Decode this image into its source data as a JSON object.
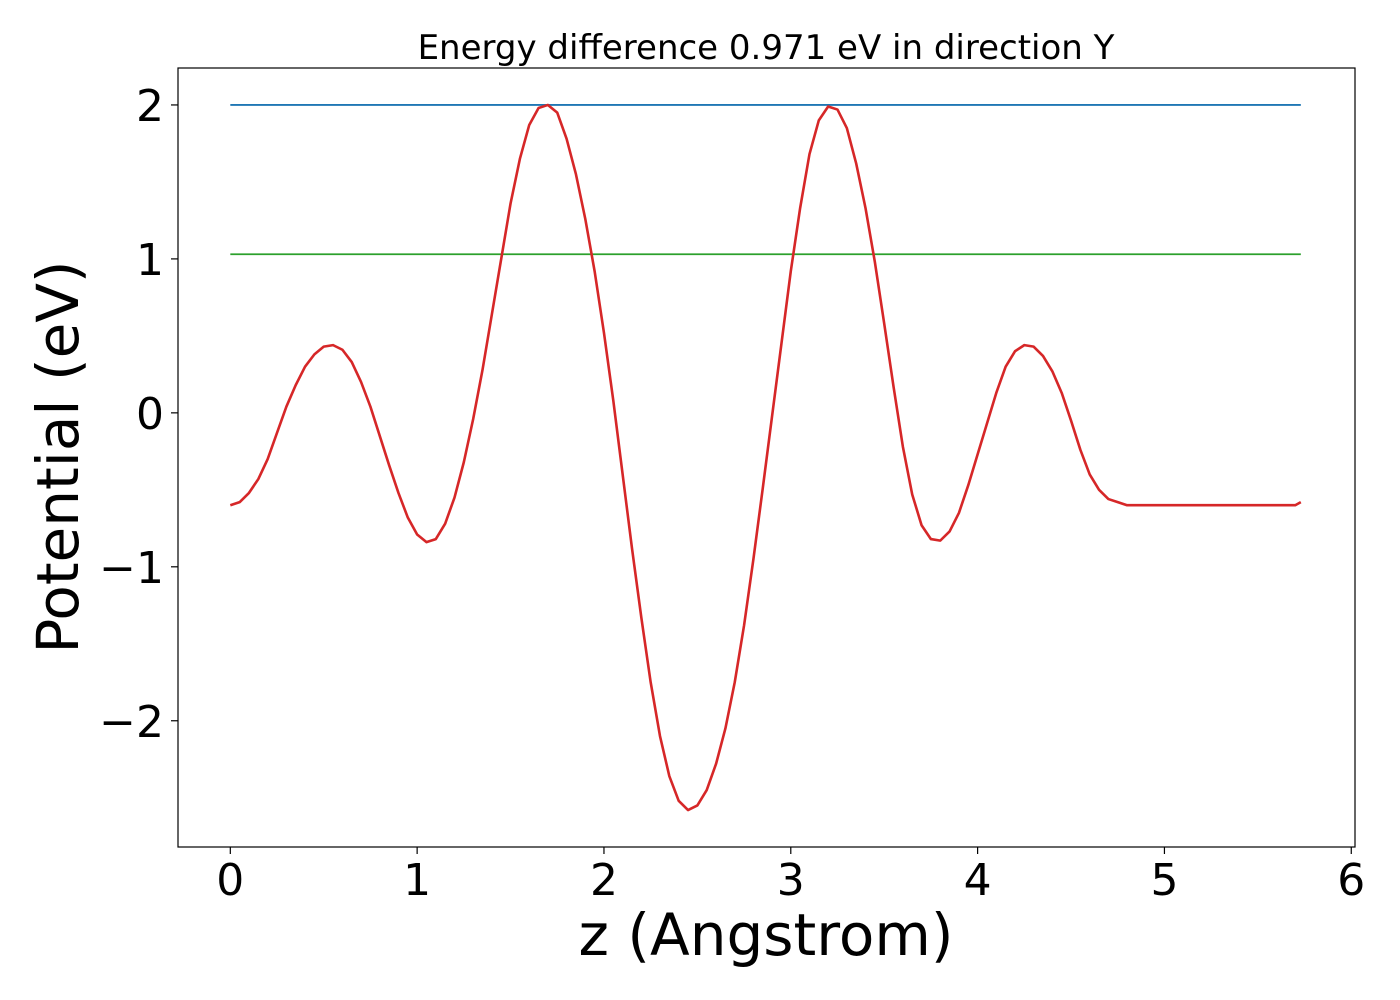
{
  "chart_data": {
    "type": "line",
    "title": "Energy difference 0.971 eV in direction Y",
    "xlabel": "z (Angstrom)",
    "ylabel": "Potential (eV)",
    "xlim": [
      -0.28,
      6.02
    ],
    "ylim": [
      -2.82,
      2.24
    ],
    "xticks": [
      0,
      1,
      2,
      3,
      4,
      5,
      6
    ],
    "xtick_labels": [
      "0",
      "1",
      "2",
      "3",
      "4",
      "5",
      "6"
    ],
    "yticks": [
      -2,
      -1,
      0,
      1,
      2
    ],
    "ytick_labels": [
      "−2",
      "−1",
      "0",
      "1",
      "2"
    ],
    "grid": false,
    "series": [
      {
        "color": "#1f77b4",
        "x": [
          0,
          5.73
        ],
        "y": [
          2.0,
          2.0
        ]
      },
      {
        "color": "#2ca02c",
        "x": [
          0,
          5.73
        ],
        "y": [
          1.03,
          1.03
        ]
      },
      {
        "color": "#d62728",
        "x": [
          0.0,
          0.05,
          0.1,
          0.15,
          0.2,
          0.25,
          0.3,
          0.35,
          0.4,
          0.45,
          0.5,
          0.55,
          0.6,
          0.65,
          0.7,
          0.75,
          0.8,
          0.85,
          0.9,
          0.95,
          1.0,
          1.05,
          1.1,
          1.15,
          1.2,
          1.25,
          1.3,
          1.35,
          1.4,
          1.45,
          1.5,
          1.55,
          1.6,
          1.65,
          1.7,
          1.75,
          1.8,
          1.85,
          1.9,
          1.95,
          2.0,
          2.05,
          2.1,
          2.15,
          2.2,
          2.25,
          2.3,
          2.35,
          2.4,
          2.45,
          2.5,
          2.55,
          2.6,
          2.65,
          2.7,
          2.75,
          2.8,
          2.85,
          2.9,
          2.95,
          3.0,
          3.05,
          3.1,
          3.15,
          3.2,
          3.25,
          3.3,
          3.35,
          3.4,
          3.45,
          3.5,
          3.55,
          3.6,
          3.65,
          3.7,
          3.75,
          3.8,
          3.85,
          3.9,
          3.95,
          4.0,
          4.05,
          4.1,
          4.15,
          4.2,
          4.25,
          4.3,
          4.35,
          4.4,
          4.45,
          4.5,
          4.55,
          4.6,
          4.65,
          4.7,
          4.75,
          4.8,
          4.85,
          4.9,
          4.95,
          5.0,
          5.05,
          5.1,
          5.15,
          5.2,
          5.25,
          5.3,
          5.35,
          5.4,
          5.45,
          5.5,
          5.55,
          5.6,
          5.65,
          5.7,
          5.73
        ],
        "y": [
          -0.6,
          -0.58,
          -0.52,
          -0.43,
          -0.3,
          -0.13,
          0.04,
          0.18,
          0.3,
          0.38,
          0.43,
          0.44,
          0.41,
          0.33,
          0.2,
          0.04,
          -0.15,
          -0.34,
          -0.52,
          -0.68,
          -0.79,
          -0.84,
          -0.82,
          -0.72,
          -0.55,
          -0.32,
          -0.04,
          0.28,
          0.64,
          1.0,
          1.36,
          1.65,
          1.87,
          1.98,
          2.0,
          1.95,
          1.78,
          1.55,
          1.26,
          0.92,
          0.52,
          0.08,
          -0.4,
          -0.88,
          -1.33,
          -1.75,
          -2.1,
          -2.36,
          -2.52,
          -2.58,
          -2.55,
          -2.45,
          -2.28,
          -2.05,
          -1.75,
          -1.38,
          -0.95,
          -0.49,
          -0.02,
          0.45,
          0.92,
          1.33,
          1.68,
          1.9,
          1.99,
          1.97,
          1.85,
          1.62,
          1.33,
          0.98,
          0.58,
          0.17,
          -0.22,
          -0.53,
          -0.73,
          -0.82,
          -0.83,
          -0.77,
          -0.65,
          -0.47,
          -0.27,
          -0.07,
          0.13,
          0.3,
          0.4,
          0.44,
          0.43,
          0.37,
          0.27,
          0.13,
          -0.05,
          -0.24,
          -0.4,
          -0.5,
          -0.56,
          -0.58,
          -0.6,
          -0.6,
          -0.6,
          -0.6,
          -0.6,
          -0.6,
          -0.6,
          -0.6,
          -0.6,
          -0.6,
          -0.6,
          -0.6,
          -0.6,
          -0.6,
          -0.6,
          -0.6,
          -0.6,
          -0.6,
          -0.6,
          -0.58
        ]
      }
    ]
  }
}
